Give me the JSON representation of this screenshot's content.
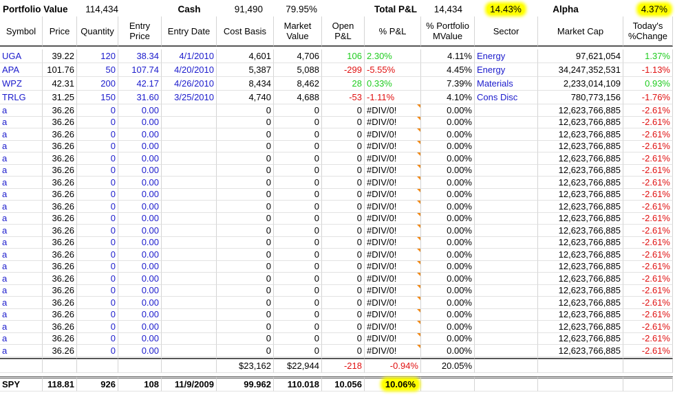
{
  "summary": {
    "portfolio_value_label": "Portfolio Value",
    "portfolio_value": "114,434",
    "cash_label": "Cash",
    "cash": "91,490",
    "cash_pct": "79.95%",
    "total_pl_label": "Total P&L",
    "total_pl": "14,434",
    "total_pl_pct": "14.43%",
    "alpha_label": "Alpha",
    "alpha": "4.37%"
  },
  "table": {
    "columns": [
      "Symbol",
      "Price",
      "Quantity",
      "Entry\nPrice",
      "Entry Date",
      "Cost Basis",
      "Market\nValue",
      "Open\nP&L",
      "% P&L",
      "% Portfolio\nMValue",
      "Sector",
      "Market Cap",
      "Today's\n%Change"
    ],
    "rows": [
      [
        "UGA",
        "39.22",
        "120",
        "38.34",
        "4/1/2010",
        "4,601",
        "4,706",
        "106",
        "2.30%",
        "4.11%",
        "Energy",
        "97,621,054",
        "1.37%"
      ],
      [
        "APA",
        "101.76",
        "50",
        "107.74",
        "4/20/2010",
        "5,387",
        "5,088",
        "-299",
        "-5.55%",
        "4.45%",
        "Energy",
        "34,247,352,531",
        "-1.13%"
      ],
      [
        "WPZ",
        "42.31",
        "200",
        "42.17",
        "4/26/2010",
        "8,434",
        "8,462",
        "28",
        "0.33%",
        "7.39%",
        "Materials",
        "2,233,014,109",
        "0.93%"
      ],
      [
        "TRLG",
        "31.25",
        "150",
        "31.60",
        "3/25/2010",
        "4,740",
        "4,688",
        "-53",
        "-1.11%",
        "4.10%",
        "Cons Disc",
        "780,773,156",
        "-1.76%"
      ],
      [
        "a",
        "36.26",
        "0",
        "0.00",
        null,
        "0",
        "0",
        "0",
        "#DIV/0!",
        "0.00%",
        null,
        "12,623,766,885",
        "-2.61%"
      ],
      [
        "a",
        "36.26",
        "0",
        "0.00",
        null,
        "0",
        "0",
        "0",
        "#DIV/0!",
        "0.00%",
        null,
        "12,623,766,885",
        "-2.61%"
      ],
      [
        "a",
        "36.26",
        "0",
        "0.00",
        null,
        "0",
        "0",
        "0",
        "#DIV/0!",
        "0.00%",
        null,
        "12,623,766,885",
        "-2.61%"
      ],
      [
        "a",
        "36.26",
        "0",
        "0.00",
        null,
        "0",
        "0",
        "0",
        "#DIV/0!",
        "0.00%",
        null,
        "12,623,766,885",
        "-2.61%"
      ],
      [
        "a",
        "36.26",
        "0",
        "0.00",
        null,
        "0",
        "0",
        "0",
        "#DIV/0!",
        "0.00%",
        null,
        "12,623,766,885",
        "-2.61%"
      ],
      [
        "a",
        "36.26",
        "0",
        "0.00",
        null,
        "0",
        "0",
        "0",
        "#DIV/0!",
        "0.00%",
        null,
        "12,623,766,885",
        "-2.61%"
      ],
      [
        "a",
        "36.26",
        "0",
        "0.00",
        null,
        "0",
        "0",
        "0",
        "#DIV/0!",
        "0.00%",
        null,
        "12,623,766,885",
        "-2.61%"
      ],
      [
        "a",
        "36.26",
        "0",
        "0.00",
        null,
        "0",
        "0",
        "0",
        "#DIV/0!",
        "0.00%",
        null,
        "12,623,766,885",
        "-2.61%"
      ],
      [
        "a",
        "36.26",
        "0",
        "0.00",
        null,
        "0",
        "0",
        "0",
        "#DIV/0!",
        "0.00%",
        null,
        "12,623,766,885",
        "-2.61%"
      ],
      [
        "a",
        "36.26",
        "0",
        "0.00",
        null,
        "0",
        "0",
        "0",
        "#DIV/0!",
        "0.00%",
        null,
        "12,623,766,885",
        "-2.61%"
      ],
      [
        "a",
        "36.26",
        "0",
        "0.00",
        null,
        "0",
        "0",
        "0",
        "#DIV/0!",
        "0.00%",
        null,
        "12,623,766,885",
        "-2.61%"
      ],
      [
        "a",
        "36.26",
        "0",
        "0.00",
        null,
        "0",
        "0",
        "0",
        "#DIV/0!",
        "0.00%",
        null,
        "12,623,766,885",
        "-2.61%"
      ],
      [
        "a",
        "36.26",
        "0",
        "0.00",
        null,
        "0",
        "0",
        "0",
        "#DIV/0!",
        "0.00%",
        null,
        "12,623,766,885",
        "-2.61%"
      ],
      [
        "a",
        "36.26",
        "0",
        "0.00",
        null,
        "0",
        "0",
        "0",
        "#DIV/0!",
        "0.00%",
        null,
        "12,623,766,885",
        "-2.61%"
      ],
      [
        "a",
        "36.26",
        "0",
        "0.00",
        null,
        "0",
        "0",
        "0",
        "#DIV/0!",
        "0.00%",
        null,
        "12,623,766,885",
        "-2.61%"
      ],
      [
        "a",
        "36.26",
        "0",
        "0.00",
        null,
        "0",
        "0",
        "0",
        "#DIV/0!",
        "0.00%",
        null,
        "12,623,766,885",
        "-2.61%"
      ],
      [
        "a",
        "36.26",
        "0",
        "0.00",
        null,
        "0",
        "0",
        "0",
        "#DIV/0!",
        "0.00%",
        null,
        "12,623,766,885",
        "-2.61%"
      ],
      [
        "a",
        "36.26",
        "0",
        "0.00",
        null,
        "0",
        "0",
        "0",
        "#DIV/0!",
        "0.00%",
        null,
        "12,623,766,885",
        "-2.61%"
      ],
      [
        "a",
        "36.26",
        "0",
        "0.00",
        null,
        "0",
        "0",
        "0",
        "#DIV/0!",
        "0.00%",
        null,
        "12,623,766,885",
        "-2.61%"
      ],
      [
        "a",
        "36.26",
        "0",
        "0.00",
        null,
        "0",
        "0",
        "0",
        "#DIV/0!",
        "0.00%",
        null,
        "12,623,766,885",
        "-2.61%"
      ],
      [
        "a",
        "36.26",
        "0",
        "0.00",
        null,
        "0",
        "0",
        "0",
        "#DIV/0!",
        "0.00%",
        null,
        "12,623,766,885",
        "-2.61%"
      ]
    ],
    "totals": [
      null,
      null,
      null,
      null,
      null,
      "$23,162",
      "$22,944",
      "-218",
      "-0.94%",
      "20.05%",
      null,
      null,
      null
    ],
    "spy": [
      "SPY",
      "118.81",
      "926",
      "108",
      "11/9/2009",
      "99.962",
      "110.018",
      "10.056",
      "10.06%",
      null,
      null,
      null,
      null
    ]
  }
}
